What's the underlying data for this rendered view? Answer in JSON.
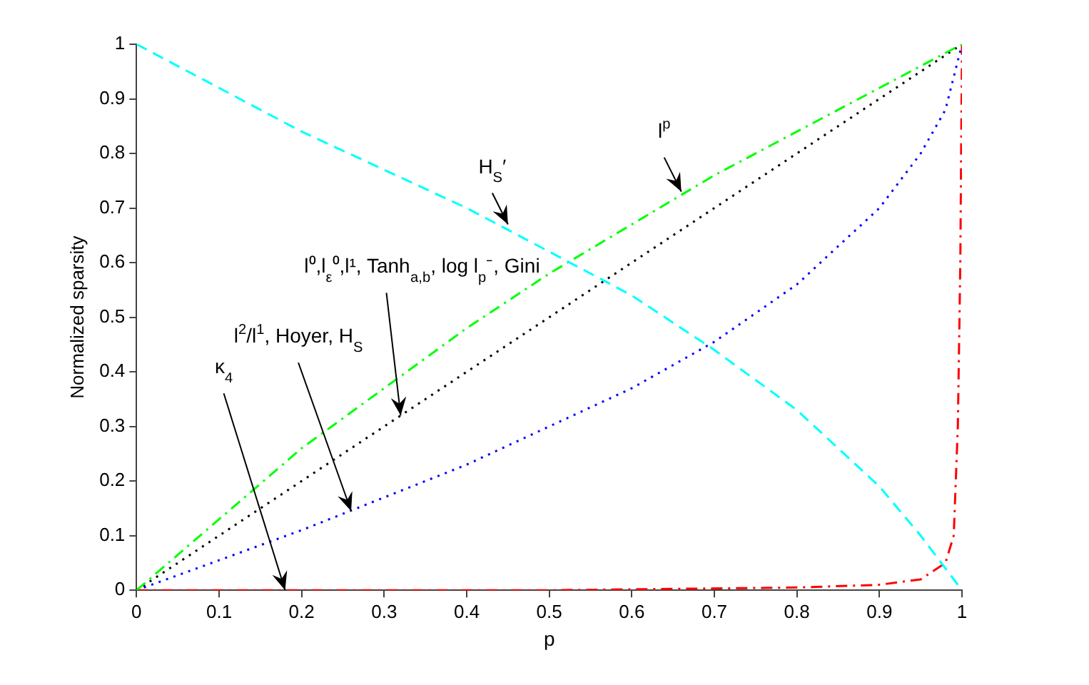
{
  "chart_data": {
    "type": "line",
    "xlabel": "p",
    "ylabel": "Normalized sparsity",
    "xlim": [
      0,
      1
    ],
    "ylim": [
      0,
      1
    ],
    "xticks": [
      0,
      0.1,
      0.2,
      0.3,
      0.4,
      0.5,
      0.6,
      0.7,
      0.8,
      0.9,
      1
    ],
    "yticks": [
      0,
      0.1,
      0.2,
      0.3,
      0.4,
      0.5,
      0.6,
      0.7,
      0.8,
      0.9,
      1
    ],
    "grid": false,
    "legend": false,
    "marker": "none",
    "series": [
      {
        "color": "#00ffff",
        "line_style": "dashed",
        "x": [
          0,
          0.1,
          0.2,
          0.3,
          0.4,
          0.5,
          0.6,
          0.7,
          0.8,
          0.9,
          0.95,
          1
        ],
        "values": [
          1,
          0.92,
          0.84,
          0.77,
          0.7,
          0.62,
          0.54,
          0.44,
          0.33,
          0.19,
          0.1,
          0
        ]
      },
      {
        "color": "#00ff00",
        "line_style": "dashdot",
        "x": [
          0,
          0.1,
          0.2,
          0.3,
          0.4,
          0.5,
          0.6,
          0.7,
          0.8,
          0.9,
          1
        ],
        "values": [
          0,
          0.13,
          0.26,
          0.37,
          0.48,
          0.58,
          0.67,
          0.76,
          0.84,
          0.92,
          1
        ]
      },
      {
        "color": "#000000",
        "line_style": "dotted",
        "x": [
          0,
          1
        ],
        "values": [
          0,
          1
        ]
      },
      {
        "color": "#0000ff",
        "line_style": "dotted",
        "x": [
          0,
          0.1,
          0.2,
          0.3,
          0.4,
          0.5,
          0.6,
          0.7,
          0.8,
          0.9,
          0.95,
          0.98,
          1
        ],
        "values": [
          0,
          0.055,
          0.11,
          0.17,
          0.23,
          0.3,
          0.37,
          0.455,
          0.56,
          0.7,
          0.8,
          0.88,
          1
        ]
      },
      {
        "color": "#ff0000",
        "line_style": "dashdot",
        "x": [
          0,
          0.5,
          0.8,
          0.9,
          0.95,
          0.98,
          0.99,
          0.995,
          0.998,
          1
        ],
        "values": [
          0,
          0,
          0.005,
          0.01,
          0.02,
          0.05,
          0.1,
          0.3,
          0.6,
          1
        ]
      }
    ],
    "annotations": [
      {
        "text": "H$_{S}$′",
        "x": 0.45,
        "y": 0.67
      },
      {
        "text": "l$^{p}$",
        "x": 0.66,
        "y": 0.73
      },
      {
        "text": "l⁰,l$_{ε}$⁰,l¹, Tanh$_{a,b}$, log l$_{p}$⁻, Gini",
        "x": 0.32,
        "y": 0.32
      },
      {
        "text": "l$^{2}$/l$^{1}$, Hoyer, H$_{S}$",
        "x": 0.26,
        "y": 0.145
      },
      {
        "text": "κ$_{4}$",
        "x": 0.18,
        "y": 0
      }
    ]
  }
}
